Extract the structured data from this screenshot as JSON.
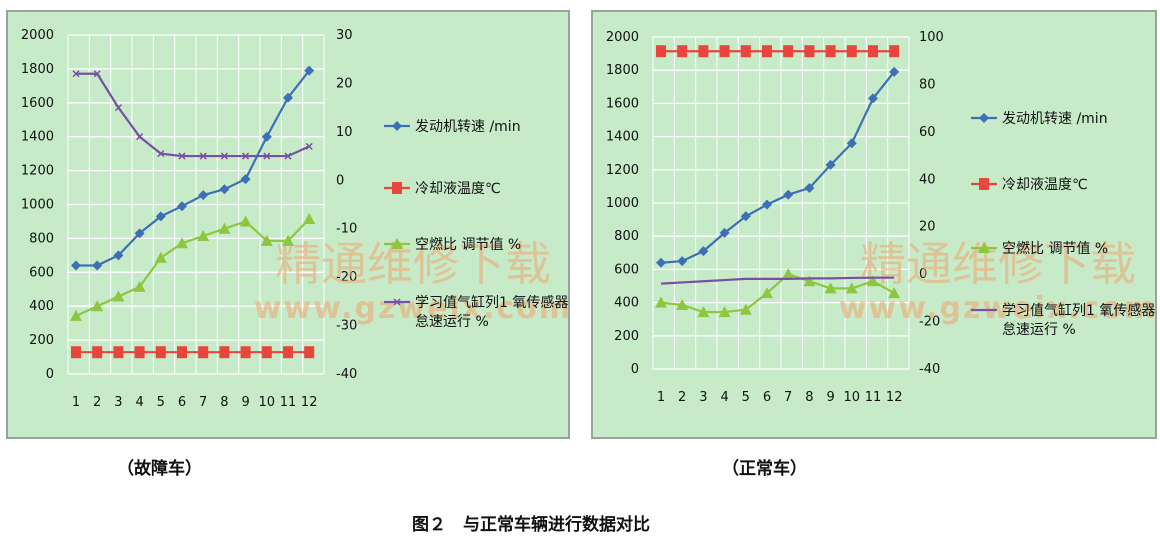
{
  "figure_title": "图２　与正常车辆进行数据对比",
  "watermark": {
    "line1": "精通维修下载",
    "line2": "www.gzweix.com"
  },
  "chart_data": [
    {
      "type": "line",
      "caption": "（故障车）",
      "x": [
        "1",
        "2",
        "3",
        "4",
        "5",
        "6",
        "7",
        "8",
        "9",
        "10",
        "11",
        "12"
      ],
      "y_left": {
        "ticks": [
          "2000",
          "1800",
          "1600",
          "1400",
          "1200",
          "1000",
          "800",
          "600",
          "400",
          "200",
          "0"
        ],
        "range": [
          0,
          2000
        ]
      },
      "y_right": {
        "ticks": [
          "30",
          "20",
          "10",
          "0",
          "-10",
          "-20",
          "-30",
          "-40"
        ],
        "range": [
          -40,
          30
        ]
      },
      "series": [
        {
          "name": "发动机转速 /min",
          "axis": "left",
          "color": "#3d6fb6",
          "marker": "diamond",
          "values": [
            640,
            640,
            700,
            830,
            930,
            990,
            1055,
            1090,
            1150,
            1400,
            1630,
            1790
          ]
        },
        {
          "name": "冷却液温度℃",
          "axis": "right",
          "color": "#e8453c",
          "marker": "square",
          "values": [
            -35.5,
            -35.5,
            -35.5,
            -35.5,
            -35.5,
            -35.5,
            -35.5,
            -35.5,
            -35.5,
            -35.5,
            -35.5,
            -35.5
          ]
        },
        {
          "name": "空燃比 调节值 %",
          "axis": "right",
          "color": "#8dc63f",
          "marker": "triangle",
          "values": [
            -28,
            -26,
            -24,
            -22,
            -16,
            -13,
            -11.5,
            -10,
            -8.5,
            -12.5,
            -12.5,
            -8
          ]
        },
        {
          "name": "学习值气缸列1 氧传感器1 怠速运行 %",
          "axis": "right",
          "color": "#7a4fa3",
          "marker": "x",
          "values": [
            22,
            22,
            15,
            9,
            5.5,
            5,
            5,
            5,
            5,
            5,
            5,
            7
          ]
        }
      ]
    },
    {
      "type": "line",
      "caption": "（正常车）",
      "x": [
        "1",
        "2",
        "3",
        "4",
        "5",
        "6",
        "7",
        "8",
        "9",
        "10",
        "11",
        "12"
      ],
      "y_left": {
        "ticks": [
          "2000",
          "1800",
          "1600",
          "1400",
          "1200",
          "1000",
          "800",
          "600",
          "400",
          "200",
          "0"
        ],
        "range": [
          0,
          2000
        ]
      },
      "y_right": {
        "ticks": [
          "100",
          "80",
          "60",
          "40",
          "20",
          "0",
          "-20",
          "-40"
        ],
        "range": [
          -40,
          100
        ]
      },
      "series": [
        {
          "name": "发动机转速 /min",
          "axis": "left",
          "color": "#3d6fb6",
          "marker": "diamond",
          "values": [
            640,
            650,
            710,
            820,
            920,
            990,
            1050,
            1090,
            1230,
            1360,
            1630,
            1790
          ]
        },
        {
          "name": "冷却液温度℃",
          "axis": "right",
          "color": "#e8453c",
          "marker": "square",
          "values": [
            94,
            94,
            94,
            94,
            94,
            94,
            94,
            94,
            94,
            94,
            94,
            94
          ]
        },
        {
          "name": "空燃比 调节值 %",
          "axis": "right",
          "color": "#8dc63f",
          "marker": "triangle",
          "values": [
            -12,
            -13,
            -16,
            -16,
            -15,
            -8,
            0,
            -3,
            -6,
            -6,
            -3,
            -8
          ]
        },
        {
          "name": "学习值气缸列1 氧传感器1 怠速运行 %",
          "axis": "right",
          "color": "#7a4fa3",
          "marker": "line",
          "values": [
            -4,
            -3.5,
            -3,
            -2.5,
            -2,
            -2,
            -2,
            -1.8,
            -1.8,
            -1.6,
            -1.5,
            -1.5
          ]
        }
      ]
    }
  ]
}
